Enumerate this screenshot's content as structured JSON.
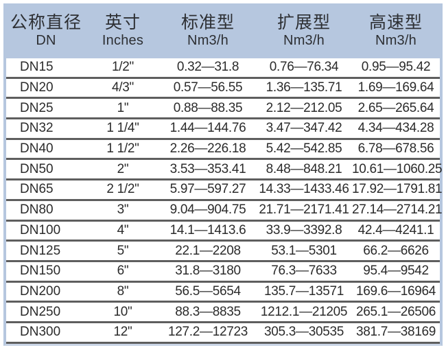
{
  "colors": {
    "header_bg": "#b6c7df",
    "frame_blue": "#b6c7df",
    "row_divider": "#5e5e5e",
    "text": "#2e2e2e"
  },
  "header": {
    "columns": [
      {
        "cn": "公称直径",
        "sub": "DN"
      },
      {
        "cn": "英寸",
        "sub": "Inches"
      },
      {
        "cn": "标准型",
        "sub": "Nm3/h"
      },
      {
        "cn": "扩展型",
        "sub": "Nm3/h"
      },
      {
        "cn": "高速型",
        "sub": "Nm3/h"
      }
    ]
  },
  "chart_data": {
    "type": "table",
    "title": "",
    "columns": [
      "公称直径 DN",
      "英寸 Inches",
      "标准型 Nm3/h",
      "扩展型 Nm3/h",
      "高速型 Nm3/h"
    ],
    "rows": [
      [
        "DN15",
        "1/2\"",
        "0.32—31.8",
        "0.76—76.34",
        "0.95—95.42"
      ],
      [
        "DN20",
        "4/3\"",
        "0.57—56.55",
        "1.36—135.71",
        "1.69—169.64"
      ],
      [
        "DN25",
        "1\"",
        "0.88—88.35",
        "2.12—212.05",
        "2.65—265.64"
      ],
      [
        "DN32",
        "1 1/4\"",
        "1.44—144.76",
        "3.47—347.42",
        "4.34—434.28"
      ],
      [
        "DN40",
        "1 1/2\"",
        "2.26—226.18",
        "5.42—542.85",
        "6.78—678.56"
      ],
      [
        "DN50",
        "2\"",
        "3.53—353.41",
        "8.48—848.21",
        "10.61—1060.25"
      ],
      [
        "DN65",
        "2 1/2\"",
        "5.97—597.27",
        "14.33—1433.46",
        "17.92—1791.81"
      ],
      [
        "DN80",
        "3\"",
        "9.04—904.75",
        "21.71—2171.41",
        "27.14—2714.21"
      ],
      [
        "DN100",
        "4\"",
        "14.1—1413.6",
        "33.9—3392.8",
        "42.4—4241.1"
      ],
      [
        "DN125",
        "5\"",
        "22.1—2208",
        "53.1—5301",
        "66.2—6626"
      ],
      [
        "DN150",
        "6\"",
        "31.8—3180",
        "76.3—7633",
        "95.4—9542"
      ],
      [
        "DN200",
        "8\"",
        "56.5—5654",
        "135.7—13571",
        "169.6—16964"
      ],
      [
        "DN250",
        "10\"",
        "88.3—8835",
        "1212.1—21205",
        "265.1—26506"
      ],
      [
        "DN300",
        "12\"",
        "127.2—12723",
        "305.3—30535",
        "381.7—38169"
      ]
    ]
  }
}
